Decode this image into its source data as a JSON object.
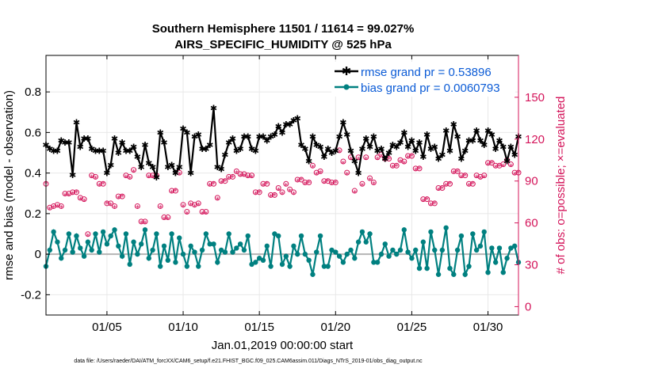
{
  "chart_data": {
    "type": "line",
    "title": "Southern Hemisphere 11501 / 11614 = 99.027%",
    "subtitle": "AIRS_SPECIFIC_HUMIDITY @ 525 hPa",
    "xlabel": "Jan.01,2019 00:00:00 start",
    "ylabel_left": "rmse and bias (model - observation)",
    "ylabel_right": "# of obs: o=possible; ×=evaluated",
    "footer": "data file: /Users/raeder/DAI/ATM_forcXX/CAM6_setup/f.e21.FHIST_BGC.f09_025.CAM6assim.011/Diags_NTrS_2019-01/obs_diag_output.nc",
    "xticks": [
      "01/05",
      "01/10",
      "01/15",
      "01/20",
      "01/25",
      "01/30"
    ],
    "xtick_days": [
      5,
      10,
      15,
      20,
      25,
      30
    ],
    "xlim": [
      1,
      32
    ],
    "ylim_left": [
      -0.3,
      0.98
    ],
    "yticks_left": [
      "-0.2",
      "0",
      "0.2",
      "0.4",
      "0.6",
      "0.8"
    ],
    "yticks_left_values": [
      -0.2,
      0,
      0.2,
      0.4,
      0.6,
      0.8
    ],
    "ylim_right": [
      -6,
      180
    ],
    "yticks_right": [
      "0",
      "30",
      "60",
      "90",
      "120",
      "150"
    ],
    "yticks_right_values": [
      0,
      30,
      60,
      90,
      120,
      150
    ],
    "x_start_day": 1,
    "x_step_days": 0.25,
    "legend": [
      {
        "label": "rmse grand pr = 0.53896",
        "color": "#000000",
        "marker": "star"
      },
      {
        "label": "bias grand pr = 0.0060793",
        "color": "#008080",
        "marker": "circle"
      }
    ],
    "colors": {
      "rmse": "#000000",
      "bias": "#008080",
      "obs": "#d4145a",
      "zero_line": "#b4b4b4"
    },
    "series": [
      {
        "name": "rmse",
        "values": [
          0.54,
          0.52,
          0.51,
          0.51,
          0.56,
          0.55,
          0.55,
          0.39,
          0.65,
          0.53,
          0.57,
          0.57,
          0.52,
          0.51,
          0.51,
          0.51,
          0.4,
          0.44,
          0.57,
          0.5,
          0.55,
          0.51,
          0.51,
          0.53,
          0.48,
          0.43,
          0.54,
          0.45,
          0.43,
          0.38,
          0.6,
          0.55,
          0.43,
          0.44,
          0.4,
          0.43,
          0.62,
          0.6,
          0.4,
          0.58,
          0.59,
          0.52,
          0.52,
          0.54,
          0.72,
          0.43,
          0.42,
          0.49,
          0.55,
          0.57,
          0.51,
          0.52,
          0.58,
          0.58,
          0.52,
          0.51,
          0.58,
          0.58,
          0.56,
          0.58,
          0.59,
          0.63,
          0.6,
          0.64,
          0.64,
          0.66,
          0.67,
          0.54,
          0.52,
          0.46,
          0.58,
          0.54,
          0.53,
          0.48,
          0.52,
          0.5,
          0.51,
          0.58,
          0.65,
          0.59,
          0.51,
          0.46,
          0.4,
          0.52,
          0.57,
          0.53,
          0.58,
          0.51,
          0.52,
          0.47,
          0.5,
          0.54,
          0.53,
          0.55,
          0.6,
          0.53,
          0.56,
          0.51,
          0.55,
          0.48,
          0.59,
          0.52,
          0.53,
          0.47,
          0.49,
          0.61,
          0.51,
          0.64,
          0.58,
          0.47,
          0.51,
          0.56,
          0.56,
          0.61,
          0.56,
          0.54,
          0.61,
          0.59,
          0.52,
          0.56,
          0.53,
          0.46,
          0.53,
          0.49,
          0.58,
          0.55,
          0.51,
          0.55,
          0.58,
          0.45,
          0.57,
          0.55,
          0.55,
          0.47,
          0.56,
          0.55,
          0.52,
          0.49,
          0.54,
          0.56,
          0.49,
          0.53,
          0.55,
          0.58,
          0.47,
          0.61,
          0.5,
          0.53,
          0.52,
          0.51,
          0.47,
          0.45,
          0.54,
          0.54,
          0.47,
          0.55,
          0.47,
          0.52,
          0.55,
          0.45,
          0.6,
          0.58,
          0.58,
          0.55,
          0.59,
          0.53,
          0.53,
          0.52,
          0.64,
          0.59,
          0.49,
          0.55,
          0.53,
          0.58,
          0.52,
          0.54,
          0.55,
          0.58,
          0.54,
          0.52,
          0.47,
          0.48,
          0.54,
          0.67,
          0.56,
          0.55,
          0.58,
          0.52,
          0.5,
          0.55,
          0.54,
          0.52,
          0.59,
          0.55,
          0.54,
          0.55,
          0.53,
          0.46,
          0.55,
          0.47,
          0.61,
          0.58,
          0.53,
          0.55,
          0.54,
          0.53,
          0.55,
          0.57,
          0.62,
          0.59,
          0.55,
          0.56,
          0.53,
          0.61,
          0.58,
          0.56,
          0.5,
          0.58,
          0.55,
          0.56,
          0.54,
          0.56,
          0.53,
          0.56,
          0.57,
          0.5,
          0.59,
          0.57,
          0.48,
          0.62,
          0.68,
          0.52,
          0.5,
          0.49,
          0.57
        ]
      },
      {
        "name": "bias",
        "values": [
          -0.06,
          0.02,
          0.11,
          0.06,
          -0.02,
          0.02,
          0.1,
          0.01,
          0.09,
          0.03,
          -0.01,
          0.06,
          0.02,
          0.1,
          0.01,
          0.11,
          0.05,
          0.09,
          0.12,
          0.04,
          -0.01,
          0.1,
          -0.05,
          0.06,
          0.0,
          0.05,
          0.12,
          -0.02,
          0.02,
          0.1,
          -0.06,
          0.04,
          -0.03,
          0.1,
          -0.04,
          0.08,
          0.0,
          -0.06,
          0.04,
          0.01,
          -0.06,
          0.02,
          0.1,
          0.05,
          0.05,
          -0.04,
          0.02,
          0.01,
          0.1,
          0.01,
          0.03,
          0.05,
          0.02,
          0.09,
          -0.05,
          -0.04,
          -0.02,
          -0.03,
          0.04,
          -0.06,
          0.1,
          0.09,
          -0.05,
          -0.01,
          -0.06,
          0.04,
          0.0,
          0.09,
          0.0,
          -0.03,
          -0.1,
          0.01,
          0.09,
          -0.06,
          -0.06,
          0.02,
          0.01,
          -0.01,
          -0.04,
          0.0,
          0.02,
          -0.02,
          0.06,
          0.11,
          0.06,
          0.1,
          -0.04,
          -0.04,
          0.0,
          0.05,
          -0.01,
          0.02,
          0.0,
          0.02,
          0.12,
          0.01,
          -0.02,
          0.02,
          -0.07,
          0.06,
          -0.07,
          0.11,
          0.02,
          -0.1,
          0.02,
          0.13,
          -0.07,
          -0.1,
          0.02,
          0.09,
          -0.1,
          -0.06,
          0.1,
          0.02,
          0.04,
          0.11,
          -0.09,
          0.03,
          -0.04,
          0.03,
          -0.09,
          -0.02,
          0.03,
          0.04,
          -0.04,
          0.09,
          -0.07,
          -0.03,
          0.02,
          -0.03,
          -0.08,
          0.03,
          -0.02,
          0.02,
          0.04,
          -0.02,
          0.02,
          0.1,
          0.05,
          -0.07,
          -0.09,
          0.04,
          0.04,
          -0.04,
          0.03,
          0.05,
          -0.1,
          0.05,
          -0.09,
          0.01,
          0.02,
          0.03,
          0.09,
          -0.04,
          0.03,
          0.09,
          -0.07,
          0.03,
          0.05,
          -0.01,
          0.03,
          0.08,
          0.04,
          0.03,
          0.05,
          -0.04,
          0.06,
          0.03,
          0.02,
          0.05,
          -0.03,
          0.08,
          0.03,
          0.02,
          -0.03,
          0.09,
          0.03,
          -0.02,
          -0.03,
          0.05,
          -0.05,
          -0.03,
          0.06,
          -0.06,
          -0.03,
          0.06,
          0.02,
          0.05,
          0.04,
          0.02,
          -0.07,
          0.08,
          0.02,
          -0.03,
          -0.05,
          0.08,
          0.03,
          -0.02,
          0.07,
          -0.02,
          -0.05,
          0.0,
          0.05,
          -0.06,
          -0.03,
          0.07,
          0.05,
          0.03,
          0.02,
          -0.02,
          0.06,
          -0.06,
          -0.02,
          0.06,
          0.0,
          0.05,
          0.02,
          0.01,
          -0.02,
          0.03,
          0.01,
          0.0,
          0.01,
          0.0,
          0.0,
          0.03,
          0.04,
          -0.01,
          0.0,
          0.01,
          -0.12,
          -0.2,
          -0.06,
          -0.07
        ]
      },
      {
        "name": "obs_possible",
        "values": [
          88,
          71,
          72,
          73,
          72,
          81,
          81,
          82,
          82,
          78,
          77,
          52,
          94,
          93,
          88,
          88,
          74,
          74,
          72,
          79,
          79,
          94,
          93,
          98,
          72,
          61,
          61,
          94,
          94,
          94,
          72,
          64,
          64,
          83,
          83,
          96,
          73,
          68,
          74,
          73,
          74,
          68,
          68,
          88,
          88,
          78,
          90,
          90,
          93,
          93,
          97,
          95,
          95,
          94,
          94,
          82,
          82,
          88,
          88,
          80,
          80,
          85,
          82,
          88,
          84,
          82,
          91,
          91,
          89,
          89,
          101,
          96,
          97,
          90,
          90,
          89,
          89,
          112,
          104,
          96,
          107,
          83,
          107,
          88,
          107,
          92,
          89,
          107,
          109,
          106,
          106,
          101,
          101,
          105,
          104,
          108,
          108,
          99,
          99,
          77,
          77,
          74,
          74,
          85,
          85,
          88,
          88,
          97,
          97,
          94,
          94,
          88,
          88,
          94,
          93,
          94,
          103,
          103,
          101,
          101,
          102,
          105,
          102,
          96,
          96,
          102,
          94,
          97,
          97,
          92,
          92,
          98,
          98,
          101,
          98,
          98,
          113,
          113,
          108,
          108,
          93,
          93,
          91,
          91,
          104,
          104,
          105,
          105,
          92,
          92,
          102,
          102,
          107,
          107,
          98,
          98,
          102,
          107,
          107,
          103,
          103,
          113,
          110,
          110,
          111,
          107,
          120,
          100,
          100,
          111,
          111,
          106,
          106,
          100,
          110,
          110,
          106,
          106,
          118,
          118,
          110,
          110,
          111,
          111,
          110,
          110,
          108,
          108,
          124,
          124,
          118,
          112,
          112,
          114,
          114,
          107,
          107,
          115,
          115,
          113,
          113,
          110,
          110,
          121,
          121,
          118,
          118,
          125,
          125,
          110,
          110,
          112,
          113,
          113,
          114,
          114,
          119,
          119,
          117,
          117,
          116,
          116,
          118,
          118,
          117,
          117,
          116,
          116,
          118,
          118,
          116,
          116,
          115,
          113,
          121,
          121,
          141,
          141,
          140,
          140
        ]
      },
      {
        "name": "obs_evaluated",
        "values": [
          88,
          70,
          71,
          72,
          71,
          80,
          80,
          81,
          82,
          77,
          76,
          51,
          93,
          92,
          87,
          88,
          74,
          73,
          71,
          78,
          79,
          93,
          92,
          97,
          71,
          60,
          60,
          93,
          93,
          93,
          71,
          63,
          63,
          82,
          83,
          95,
          72,
          67,
          73,
          72,
          73,
          67,
          67,
          87,
          88,
          77,
          89,
          90,
          92,
          93,
          96,
          94,
          94,
          93,
          93,
          81,
          82,
          87,
          88,
          79,
          80,
          84,
          81,
          87,
          83,
          81,
          90,
          91,
          88,
          89,
          100,
          95,
          96,
          89,
          90,
          88,
          89,
          111,
          103,
          95,
          106,
          82,
          106,
          87,
          106,
          91,
          88,
          106,
          108,
          105,
          106,
          100,
          101,
          104,
          103,
          107,
          108,
          98,
          99,
          76,
          77,
          73,
          74,
          84,
          85,
          87,
          88,
          96,
          97,
          93,
          94,
          87,
          88,
          93,
          92,
          93,
          102,
          103,
          100,
          101,
          101,
          104,
          101,
          95,
          96,
          101,
          93,
          96,
          97,
          91,
          92,
          97,
          98,
          100,
          97,
          98,
          112,
          113,
          107,
          108,
          92,
          93,
          90,
          91,
          103,
          104,
          104,
          105,
          91,
          92,
          101,
          102,
          106,
          107,
          97,
          98,
          101,
          106,
          107,
          102,
          103,
          112,
          109,
          110,
          110,
          106,
          119,
          99,
          100,
          110,
          111,
          105,
          106,
          99,
          109,
          110,
          105,
          106,
          117,
          118,
          109,
          110,
          110,
          111,
          109,
          110,
          107,
          108,
          123,
          124,
          117,
          111,
          112,
          113,
          114,
          106,
          107,
          114,
          115,
          112,
          113,
          109,
          110,
          120,
          121,
          117,
          118,
          124,
          125,
          109,
          110,
          111,
          112,
          113,
          113,
          114,
          118,
          119,
          116,
          117,
          115,
          116,
          117,
          118,
          116,
          117,
          115,
          116,
          117,
          118,
          115,
          116,
          114,
          112,
          120,
          121,
          140,
          141,
          139,
          140
        ]
      }
    ]
  }
}
